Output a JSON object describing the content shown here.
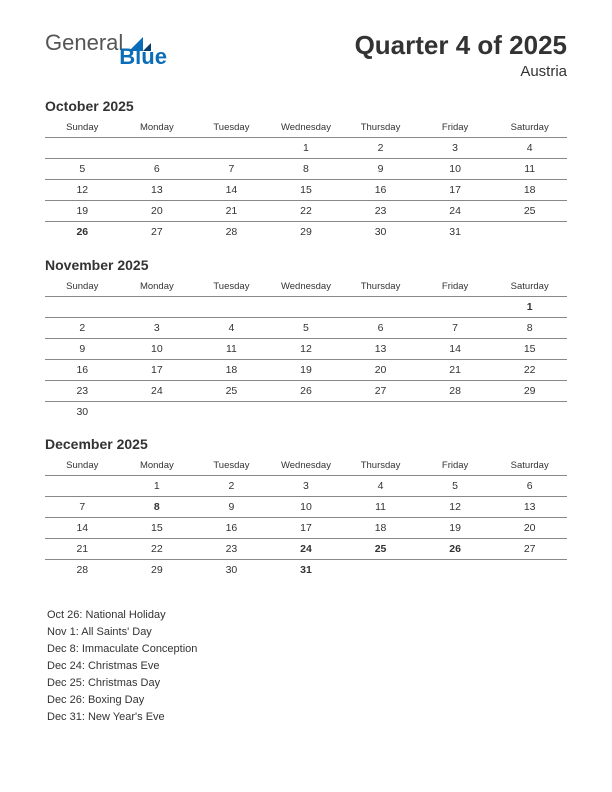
{
  "logo": {
    "text1": "General",
    "text2": "Blue"
  },
  "header": {
    "title": "Quarter 4 of 2025",
    "subtitle": "Austria"
  },
  "daynames": [
    "Sunday",
    "Monday",
    "Tuesday",
    "Wednesday",
    "Thursday",
    "Friday",
    "Saturday"
  ],
  "colors": {
    "text": "#333333",
    "holiday": "#c0392b",
    "rule": "#888888",
    "logo_blue": "#0b6db7",
    "background": "#ffffff"
  },
  "months": [
    {
      "title": "October 2025",
      "weeks": [
        [
          "",
          "",
          "",
          "1",
          "2",
          "3",
          "4"
        ],
        [
          "5",
          "6",
          "7",
          "8",
          "9",
          "10",
          "11"
        ],
        [
          "12",
          "13",
          "14",
          "15",
          "16",
          "17",
          "18"
        ],
        [
          "19",
          "20",
          "21",
          "22",
          "23",
          "24",
          "25"
        ],
        [
          "26",
          "27",
          "28",
          "29",
          "30",
          "31",
          ""
        ]
      ],
      "holidays": [
        [
          4,
          0
        ]
      ]
    },
    {
      "title": "November 2025",
      "weeks": [
        [
          "",
          "",
          "",
          "",
          "",
          "",
          "1"
        ],
        [
          "2",
          "3",
          "4",
          "5",
          "6",
          "7",
          "8"
        ],
        [
          "9",
          "10",
          "11",
          "12",
          "13",
          "14",
          "15"
        ],
        [
          "16",
          "17",
          "18",
          "19",
          "20",
          "21",
          "22"
        ],
        [
          "23",
          "24",
          "25",
          "26",
          "27",
          "28",
          "29"
        ],
        [
          "30",
          "",
          "",
          "",
          "",
          "",
          ""
        ]
      ],
      "holidays": [
        [
          0,
          6
        ]
      ]
    },
    {
      "title": "December 2025",
      "weeks": [
        [
          "",
          "1",
          "2",
          "3",
          "4",
          "5",
          "6"
        ],
        [
          "7",
          "8",
          "9",
          "10",
          "11",
          "12",
          "13"
        ],
        [
          "14",
          "15",
          "16",
          "17",
          "18",
          "19",
          "20"
        ],
        [
          "21",
          "22",
          "23",
          "24",
          "25",
          "26",
          "27"
        ],
        [
          "28",
          "29",
          "30",
          "31",
          "",
          "",
          ""
        ]
      ],
      "holidays": [
        [
          1,
          1
        ],
        [
          3,
          3
        ],
        [
          3,
          4
        ],
        [
          3,
          5
        ],
        [
          4,
          3
        ]
      ]
    }
  ],
  "holiday_list": [
    "Oct 26: National Holiday",
    "Nov 1: All Saints' Day",
    "Dec 8: Immaculate Conception",
    "Dec 24: Christmas Eve",
    "Dec 25: Christmas Day",
    "Dec 26: Boxing Day",
    "Dec 31: New Year's Eve"
  ]
}
